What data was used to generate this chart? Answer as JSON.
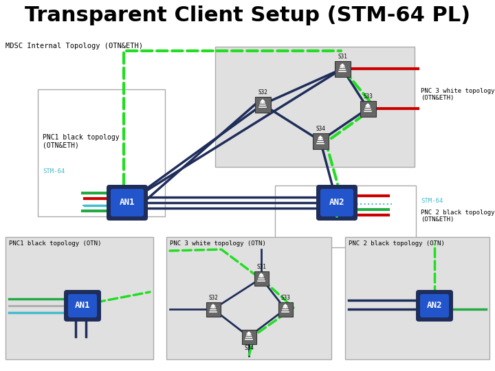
{
  "title": "Transparent Client Setup (STM-64 PL)",
  "title_fontsize": 22,
  "bg_color": "#ffffff",
  "mdsc_label": "MDSC Internal Topology (OTN&ETH)",
  "pnc1_eth_label": "PNC1 black topology\n(OTN&ETH)",
  "pnc3_eth_label": "PNC 3 white topology\n(OTN&ETH)",
  "pnc2_eth_label": "PNC 2 black topology\n(OTN&ETH)",
  "stm64_left": "STM-64",
  "stm64_right": "STM-64",
  "pnc1_otn_label": "PNC1 black topology (OTN)",
  "pnc3_otn_label": "PNC 3 white topology (OTN)",
  "pnc2_otn_label": "PNC 2 black topology (OTN)",
  "dark_navy": "#1e2d5a",
  "green_dashed": "#22dd22",
  "red_line": "#cc0000",
  "cyan_line": "#44bbcc",
  "green_solid": "#22aa44",
  "gray_line": "#aaaaaa",
  "light_gray_box": "#e0e0e0",
  "white_box": "#ffffff",
  "node_bg": "#666666",
  "an_fill": "#2255cc",
  "an_border": "#1e2d5a"
}
